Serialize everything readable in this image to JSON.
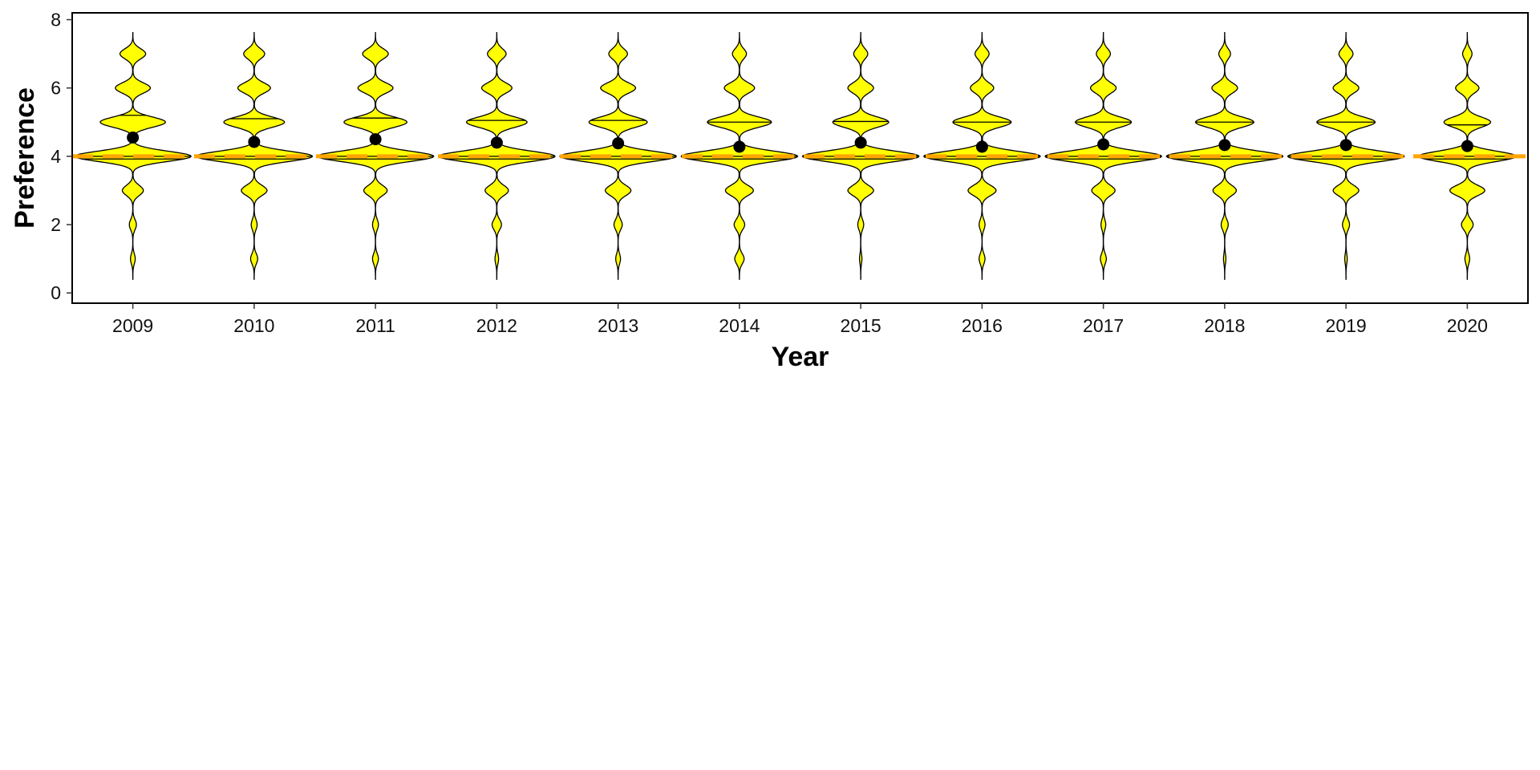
{
  "chart_data": {
    "type": "violin",
    "xlabel": "Year",
    "ylabel": "Preference",
    "categories": [
      "2009",
      "2010",
      "2011",
      "2012",
      "2013",
      "2014",
      "2015",
      "2016",
      "2017",
      "2018",
      "2019",
      "2020"
    ],
    "ylim": [
      -0.3,
      8.2
    ],
    "yticks": [
      0,
      2,
      4,
      6,
      8
    ],
    "reference_line": {
      "y": 4,
      "color": "#FFA500",
      "style": "dashed"
    },
    "violin_fill": "#FFFF00",
    "violin_stroke": "#000000",
    "mean_marker_color": "#000000",
    "grid": false,
    "legend": "none",
    "density_levels": [
      1,
      2,
      3,
      4,
      5,
      6,
      7
    ],
    "series": [
      {
        "category": "2009",
        "mean": 4.55,
        "median": 4,
        "q1": 3.92,
        "q3": 5.2,
        "density": [
          0.04,
          0.06,
          0.18,
          1.0,
          0.56,
          0.3,
          0.22
        ]
      },
      {
        "category": "2010",
        "mean": 4.42,
        "median": 4,
        "q1": 3.92,
        "q3": 5.1,
        "density": [
          0.06,
          0.05,
          0.22,
          1.0,
          0.52,
          0.28,
          0.18
        ]
      },
      {
        "category": "2011",
        "mean": 4.5,
        "median": 4,
        "q1": 3.92,
        "q3": 5.12,
        "density": [
          0.05,
          0.05,
          0.2,
          1.0,
          0.54,
          0.3,
          0.22
        ]
      },
      {
        "category": "2012",
        "mean": 4.4,
        "median": 4,
        "q1": 3.92,
        "q3": 5.05,
        "density": [
          0.03,
          0.08,
          0.2,
          1.0,
          0.52,
          0.26,
          0.16
        ]
      },
      {
        "category": "2013",
        "mean": 4.38,
        "median": 4,
        "q1": 3.92,
        "q3": 5.05,
        "density": [
          0.04,
          0.07,
          0.22,
          1.0,
          0.5,
          0.3,
          0.16
        ]
      },
      {
        "category": "2014",
        "mean": 4.28,
        "median": 4,
        "q1": 3.92,
        "q3": 5.0,
        "density": [
          0.08,
          0.09,
          0.24,
          1.0,
          0.55,
          0.26,
          0.12
        ]
      },
      {
        "category": "2015",
        "mean": 4.4,
        "median": 4,
        "q1": 3.92,
        "q3": 5.02,
        "density": [
          0.02,
          0.05,
          0.22,
          1.0,
          0.48,
          0.22,
          0.12
        ]
      },
      {
        "category": "2016",
        "mean": 4.28,
        "median": 4,
        "q1": 3.92,
        "q3": 5.0,
        "density": [
          0.05,
          0.05,
          0.24,
          1.0,
          0.5,
          0.2,
          0.12
        ]
      },
      {
        "category": "2017",
        "mean": 4.35,
        "median": 4,
        "q1": 3.92,
        "q3": 5.0,
        "density": [
          0.05,
          0.04,
          0.2,
          1.0,
          0.48,
          0.22,
          0.12
        ]
      },
      {
        "category": "2018",
        "mean": 4.33,
        "median": 4,
        "q1": 3.92,
        "q3": 5.0,
        "density": [
          0.02,
          0.06,
          0.2,
          1.0,
          0.5,
          0.22,
          0.1
        ]
      },
      {
        "category": "2019",
        "mean": 4.33,
        "median": 4,
        "q1": 3.92,
        "q3": 5.0,
        "density": [
          0.02,
          0.06,
          0.22,
          1.0,
          0.5,
          0.22,
          0.12
        ]
      },
      {
        "category": "2020",
        "mean": 4.3,
        "median": 4,
        "q1": 3.92,
        "q3": 4.92,
        "density": [
          0.04,
          0.1,
          0.3,
          0.84,
          0.4,
          0.2,
          0.08
        ]
      }
    ]
  }
}
